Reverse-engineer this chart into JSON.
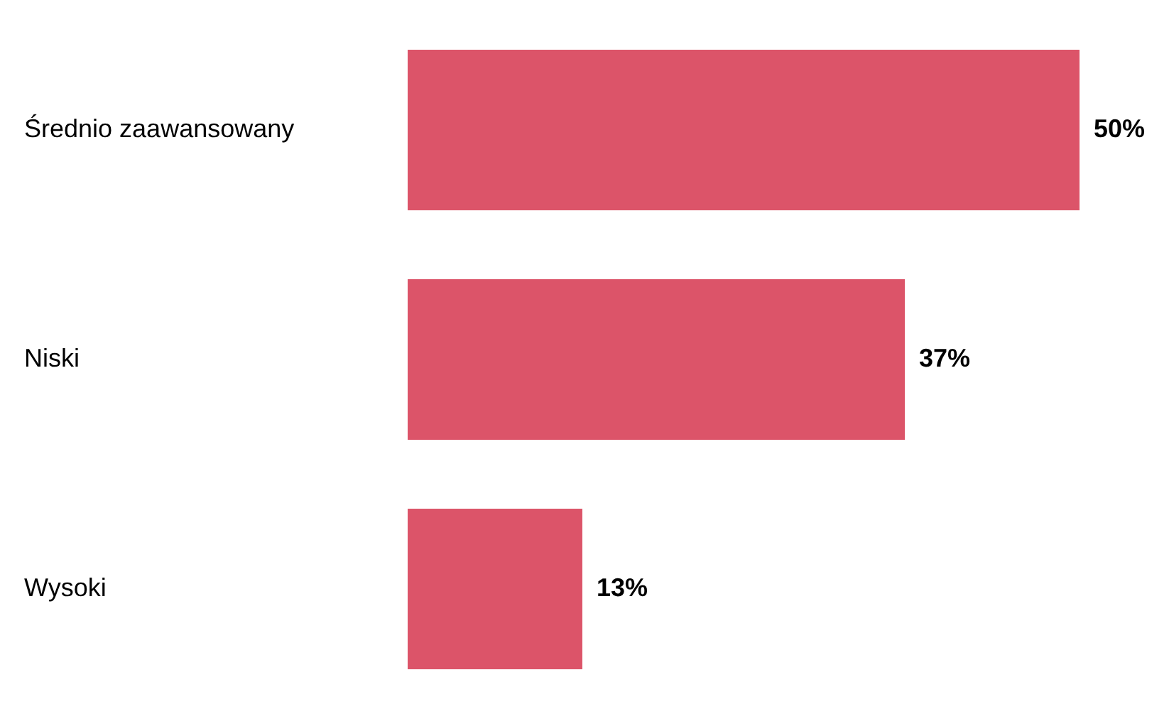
{
  "chart_data": {
    "type": "bar",
    "orientation": "horizontal",
    "categories": [
      "Średnio zaawansowany",
      "Niski",
      "Wysoki"
    ],
    "values": [
      50,
      37,
      13
    ],
    "color": "#dc5469",
    "value_labels": [
      "50%",
      "37%",
      "13%"
    ],
    "legend": false,
    "tick_labels": "y"
  }
}
